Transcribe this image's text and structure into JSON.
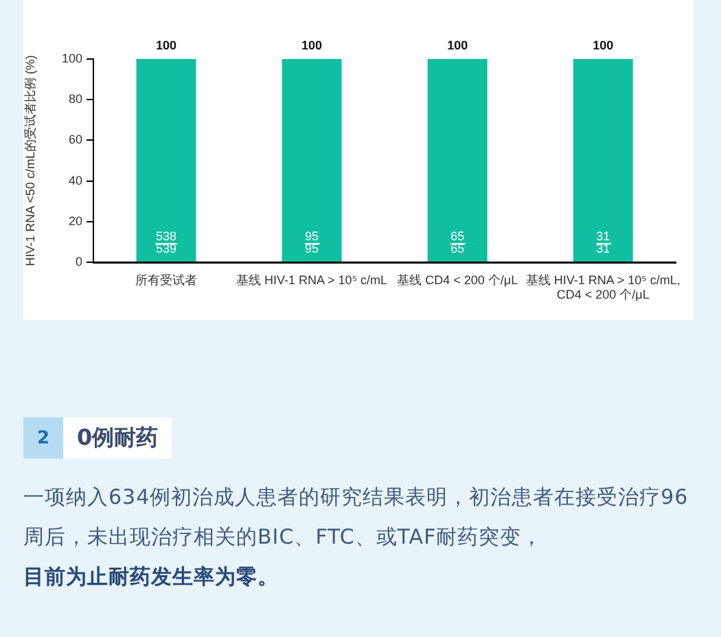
{
  "chart_data": {
    "type": "bar",
    "categories": [
      "所有受试者",
      "基线 HIV-1 RNA > 10⁵ c/mL",
      "基线 CD4 < 200 个/μL",
      "基线 HIV-1 RNA > 10⁵ c/mL, CD4 < 200 个/μL"
    ],
    "values": [
      100,
      100,
      100,
      100
    ],
    "color": "#10bf9f",
    "ylabel": "HIV-1 RNA <50 c/mL的受试者比例 (%)",
    "ylim": [
      0,
      100
    ],
    "yticks": [
      0,
      20,
      40,
      60,
      80,
      100
    ],
    "data_labels": true,
    "grid": false,
    "legend": false,
    "annotations": [
      "538",
      "539",
      "95",
      "95",
      "65",
      "65",
      "31",
      "31",
      "2",
      "0例耐药",
      "一项纳入634例初治成人患者的研究结果表明，初治患者在接受治疗96周后，未出现治疗相关的BIC、FTC、或TAF耐药突变，",
      "目前为止耐药发生率为零。"
    ]
  }
}
